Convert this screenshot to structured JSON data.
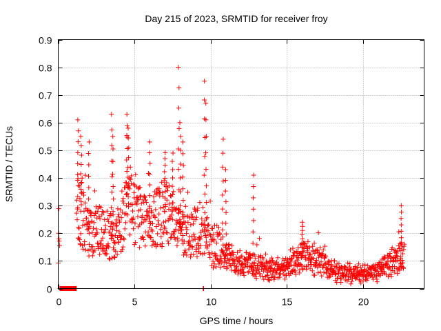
{
  "chart_data": {
    "type": "scatter",
    "title": "Day 215 of 2023, SRMTID for receiver froy",
    "xlabel": "GPS time / hours",
    "ylabel": "SRMTID / TECUs",
    "xlim": [
      0,
      24
    ],
    "ylim": [
      0,
      0.9
    ],
    "xticks": [
      0,
      5,
      10,
      15,
      20
    ],
    "yticks": [
      0,
      0.1,
      0.2,
      0.3,
      0.4,
      0.5,
      0.6,
      0.7,
      0.8,
      0.9
    ],
    "ytick_labels": [
      "0",
      "0.1",
      "0.2",
      "0.3",
      "0.4",
      "0.5",
      "0.6",
      "0.7",
      "0.8",
      "0.9"
    ],
    "grid": true,
    "marker": "plus",
    "color": "#ff0000",
    "series": [
      {
        "name": "SRMTID",
        "trend_x": [
          0,
          0.5,
          1.2,
          1.5,
          2,
          3,
          3.5,
          4,
          4.5,
          5,
          6,
          7,
          7.5,
          8,
          8.5,
          9,
          9.5,
          10,
          10.5,
          11,
          12,
          13,
          14,
          15,
          16,
          17,
          18,
          19,
          20,
          21,
          22,
          22.7
        ],
        "trend_y": [
          0.18,
          0.2,
          0.3,
          0.28,
          0.2,
          0.22,
          0.18,
          0.22,
          0.3,
          0.28,
          0.22,
          0.28,
          0.25,
          0.2,
          0.18,
          0.2,
          0.22,
          0.15,
          0.16,
          0.12,
          0.09,
          0.08,
          0.07,
          0.07,
          0.12,
          0.1,
          0.07,
          0.05,
          0.05,
          0.06,
          0.1,
          0.12
        ],
        "spikes": [
          {
            "x": 1.3,
            "y": 0.61
          },
          {
            "x": 1.5,
            "y": 0.55
          },
          {
            "x": 2.0,
            "y": 0.53
          },
          {
            "x": 3.5,
            "y": 0.63
          },
          {
            "x": 3.6,
            "y": 0.55
          },
          {
            "x": 4.5,
            "y": 0.63
          },
          {
            "x": 4.6,
            "y": 0.58
          },
          {
            "x": 6.0,
            "y": 0.53
          },
          {
            "x": 7.0,
            "y": 0.47
          },
          {
            "x": 7.5,
            "y": 0.49
          },
          {
            "x": 7.9,
            "y": 0.8
          },
          {
            "x": 8.0,
            "y": 0.6
          },
          {
            "x": 8.2,
            "y": 0.53
          },
          {
            "x": 9.6,
            "y": 0.75
          },
          {
            "x": 9.7,
            "y": 0.67
          },
          {
            "x": 10.8,
            "y": 0.54
          },
          {
            "x": 11.0,
            "y": 0.43
          },
          {
            "x": 12.8,
            "y": 0.41
          },
          {
            "x": 16.0,
            "y": 0.24
          },
          {
            "x": 22.5,
            "y": 0.3
          }
        ],
        "zero_ranges": [
          [
            0.1,
            1.2
          ],
          [
            9.5,
            9.55
          ]
        ]
      }
    ]
  }
}
